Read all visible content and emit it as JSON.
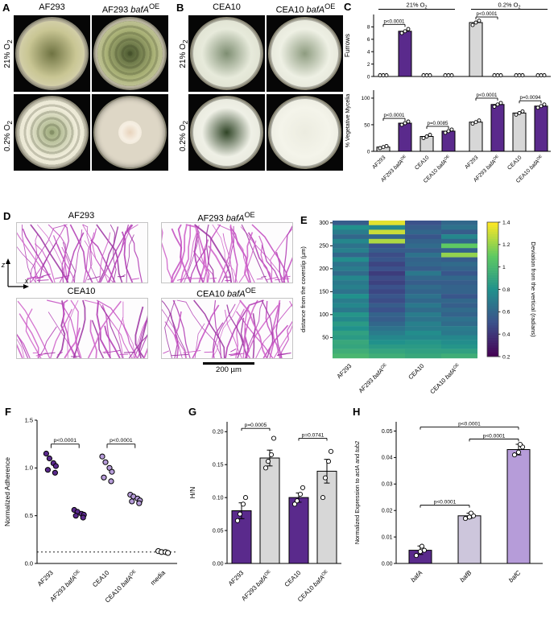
{
  "colors": {
    "purple": "#5a2a8c",
    "light_purple": "#b69cd9",
    "lavender": "#cdc6dc",
    "gray": "#d7d7d7",
    "white": "#ffffff",
    "magenta": "#bb3eb6"
  },
  "panelA": {
    "label": "A",
    "col_titles": [
      "AF293",
      "AF293 *bafA*^OE^"
    ],
    "row_labels": [
      "21% O~2~",
      "0.2% O~2~"
    ],
    "dishes": [
      [
        {
          "plate": "#cfc9ae",
          "center": "#6f7342",
          "mid": "#c9c694",
          "edge": "#e2ddc6",
          "scale": 0.93
        },
        {
          "plate": "#d6d0b8",
          "center": "#49572e",
          "mid": "#aab277",
          "edge": "#ddd9c0",
          "scale": 0.93,
          "rings": true
        }
      ],
      [
        {
          "plate": "#d9d4c0",
          "center": "#9aa878",
          "mid": "#efecd9",
          "edge": "#e6e2d0",
          "scale": 0.95,
          "rings": true
        },
        {
          "plate": "#ded7c6",
          "center": "#e8d3bc",
          "mid": "#f6efe3",
          "edge": "#ece4d2",
          "scale": 0.34
        }
      ]
    ]
  },
  "panelB": {
    "label": "B",
    "col_titles": [
      "CEA10",
      "CEA10 *bafA*^OE^"
    ],
    "row_labels": [
      "21% O~2~",
      "0.2% O~2~"
    ],
    "dishes": [
      [
        {
          "plate": "#c9c8b8",
          "center": "#7e8e72",
          "mid": "#e7eadb",
          "edge": "#d9dbc9",
          "scale": 0.95
        },
        {
          "plate": "#cfcec0",
          "center": "#8e9c80",
          "mid": "#eef0e4",
          "edge": "#dfe0d2",
          "scale": 0.95
        }
      ],
      [
        {
          "plate": "#c6c6b8",
          "center": "#2f4426",
          "mid": "#eff0e6",
          "edge": "#e2e3d6",
          "scale": 0.95
        },
        {
          "plate": "#c9c9bd",
          "center": "#ecece0",
          "mid": "#f4f4ea",
          "edge": "#e6e6da",
          "scale": 0.95
        }
      ]
    ]
  },
  "panelC": {
    "label": "C",
    "group_headers": [
      "21% O~2~",
      "0.2% O~2~"
    ]
  },
  "panelD": {
    "label": "D",
    "titles": [
      "AF293",
      "AF293 *bafA*^OE^",
      "CEA10",
      "CEA10 *bafA*^OE^"
    ],
    "z_label": "*z*",
    "x_label": "*x*",
    "scale_label": "200 µm"
  },
  "panelE": {
    "label": "E"
  },
  "panelF": {
    "label": "F"
  },
  "panelG": {
    "label": "G"
  },
  "panelH": {
    "label": "H"
  },
  "chart_data": [
    {
      "id": "furrows",
      "panel": "C",
      "type": "bar",
      "ylabel": "Furrows",
      "ylim": [
        0,
        10
      ],
      "yticks": [
        0,
        2,
        4,
        6,
        8
      ],
      "ytick_labels": [
        "0",
        "2",
        "4",
        "6",
        "8"
      ],
      "group_headers": [
        "21% O~2~",
        "0.2% O~2~"
      ],
      "categories": [
        "AF293",
        "AF293 *bafA*^OE^",
        "CEA10",
        "CEA10 *bafA*^OE^",
        "AF293",
        "AF293 *bafA*^OE^",
        "CEA10",
        "CEA10 *bafA*^OE^"
      ],
      "values": [
        0,
        7.3,
        0,
        0,
        8.7,
        0,
        0,
        0
      ],
      "bar_colors": [
        "gray",
        "purple",
        "gray",
        "purple",
        "gray",
        "purple",
        "gray",
        "purple"
      ],
      "points": [
        [
          0,
          0,
          0
        ],
        [
          7.0,
          7.3,
          7.65
        ],
        [
          0,
          0,
          0
        ],
        [
          0,
          0,
          0
        ],
        [
          8.3,
          8.7,
          9.0
        ],
        [
          0,
          0,
          0
        ],
        [
          0,
          0,
          0
        ],
        [
          0,
          0,
          0
        ]
      ],
      "annotations": [
        {
          "text": "p<0.0001",
          "from": 0,
          "to": 1,
          "y": 8.4
        },
        {
          "text": "p<0.0001",
          "from": 4,
          "to": 5,
          "y": 9.6
        }
      ]
    },
    {
      "id": "mycelia",
      "panel": "C",
      "type": "bar",
      "ylabel": "% Vegetative Mycelia",
      "ylim": [
        0,
        115
      ],
      "yticks": [
        0,
        50,
        100
      ],
      "ytick_labels": [
        "0",
        "50",
        "100"
      ],
      "categories": [
        "AF293",
        "AF293 *bafA*^OE^",
        "CEA10",
        "CEA10 *bafA*^OE^",
        "AF293",
        "AF293 *bafA*^OE^",
        "CEA10",
        "CEA10 *bafA*^OE^"
      ],
      "values": [
        8,
        53,
        28,
        38,
        55,
        88,
        72,
        85
      ],
      "bar_colors": [
        "gray",
        "purple",
        "gray",
        "purple",
        "gray",
        "purple",
        "gray",
        "purple"
      ],
      "points": [
        [
          6,
          8,
          10
        ],
        [
          50,
          53,
          56
        ],
        [
          25,
          28,
          31
        ],
        [
          35,
          38,
          41
        ],
        [
          52,
          55,
          58
        ],
        [
          84,
          88,
          91
        ],
        [
          69,
          72,
          75
        ],
        [
          82,
          85,
          88
        ]
      ],
      "annotations": [
        {
          "text": "p<0.0001",
          "from": 0,
          "to": 1,
          "y": 62
        },
        {
          "text": "p=0.0085",
          "from": 2,
          "to": 3,
          "y": 47
        },
        {
          "text": "p<0.0001",
          "from": 4,
          "to": 5,
          "y": 100
        },
        {
          "text": "p=0.0094",
          "from": 6,
          "to": 7,
          "y": 95
        }
      ]
    },
    {
      "id": "deviation",
      "panel": "E",
      "type": "heatmap",
      "ylabel": "distance from the coverslip (µm)",
      "categories": [
        "AF293",
        "AF293 *bafA*^OE^",
        "CEA10",
        "CEA10 *bafA*^OE^"
      ],
      "yticks": [
        300,
        250,
        200,
        150,
        100,
        50
      ],
      "row_top": 300,
      "row_step": 10,
      "colorbar": {
        "label": "Deviation from the vertical (radians)",
        "min": 0.2,
        "max": 1.4,
        "ticks": [
          0.2,
          0.4,
          0.6,
          0.8,
          1,
          1.2,
          1.4
        ],
        "tick_labels": [
          "0.2",
          "0.4",
          "0.6",
          "0.8",
          "1",
          "1.2",
          "1.4"
        ]
      },
      "values": [
        [
          0.55,
          1.35,
          0.5,
          0.6
        ],
        [
          0.8,
          0.75,
          0.55,
          0.65
        ],
        [
          0.7,
          1.3,
          0.6,
          0.55
        ],
        [
          0.6,
          0.6,
          0.52,
          0.75
        ],
        [
          0.75,
          1.25,
          0.58,
          0.6
        ],
        [
          0.65,
          0.5,
          0.62,
          1.1
        ],
        [
          0.72,
          0.55,
          0.55,
          0.58
        ],
        [
          0.6,
          0.48,
          0.65,
          1.2
        ],
        [
          0.78,
          0.52,
          0.58,
          0.55
        ],
        [
          0.65,
          0.45,
          0.6,
          0.62
        ],
        [
          0.7,
          0.5,
          0.55,
          0.58
        ],
        [
          0.62,
          0.42,
          0.68,
          0.52
        ],
        [
          0.75,
          0.48,
          0.6,
          0.6
        ],
        [
          0.68,
          0.44,
          0.55,
          0.55
        ],
        [
          0.72,
          0.5,
          0.62,
          0.58
        ],
        [
          0.65,
          0.46,
          0.58,
          0.58
        ],
        [
          0.8,
          0.52,
          0.65,
          0.52
        ],
        [
          0.7,
          0.48,
          0.6,
          0.6
        ],
        [
          0.75,
          0.55,
          0.68,
          0.56
        ],
        [
          0.68,
          0.5,
          0.62,
          0.62
        ],
        [
          0.82,
          0.58,
          0.7,
          0.58
        ],
        [
          0.75,
          0.55,
          0.65,
          0.65
        ],
        [
          0.85,
          0.6,
          0.72,
          0.62
        ],
        [
          0.8,
          0.65,
          0.7,
          0.7
        ],
        [
          0.88,
          0.7,
          0.78,
          0.68
        ],
        [
          0.85,
          0.75,
          0.75,
          0.75
        ],
        [
          0.92,
          0.8,
          0.82,
          0.78
        ],
        [
          0.9,
          0.85,
          0.85,
          0.82
        ],
        [
          0.95,
          0.9,
          0.88,
          0.88
        ],
        [
          1.0,
          0.95,
          0.92,
          0.95
        ]
      ]
    },
    {
      "id": "adherence",
      "panel": "F",
      "type": "scatter",
      "ylabel": "Normalized Adherence",
      "ylim": [
        0,
        1.5
      ],
      "yticks": [
        0,
        0.5,
        1,
        1.5
      ],
      "ytick_labels": [
        "0.0",
        "0.5",
        "1.0",
        "1.5"
      ],
      "categories": [
        "AF293",
        "AF293 *bafA*^OE^",
        "CEA10",
        "CEA10 *bafA*^OE^",
        "media"
      ],
      "series": [
        {
          "color": "purple",
          "values": [
            1.15,
            1.1,
            1.05,
            1.02,
            0.98,
            0.95
          ]
        },
        {
          "color": "purple",
          "values": [
            0.56,
            0.54,
            0.52,
            0.51,
            0.5,
            0.48
          ]
        },
        {
          "color": "light_purple",
          "values": [
            1.12,
            1.06,
            1.0,
            0.96,
            0.9,
            0.86
          ]
        },
        {
          "color": "light_purple",
          "values": [
            0.72,
            0.7,
            0.68,
            0.66,
            0.65,
            0.63
          ]
        },
        {
          "color": "white",
          "values": [
            0.13,
            0.12,
            0.12,
            0.11
          ]
        }
      ],
      "baseline": 0.12,
      "annotations": [
        {
          "text": "p<0.0001",
          "from": 0,
          "to": 1,
          "y": 1.25
        },
        {
          "text": "p<0.0001",
          "from": 2,
          "to": 3,
          "y": 1.25
        }
      ]
    },
    {
      "id": "hn",
      "panel": "G",
      "type": "bar",
      "ylabel": "H/N",
      "ylim": [
        0,
        0.215
      ],
      "yticks": [
        0,
        0.05,
        0.1,
        0.15,
        0.2
      ],
      "ytick_labels": [
        "0.00",
        "0.05",
        "0.10",
        "0.15",
        "0.20"
      ],
      "categories": [
        "AF293",
        "AF293 *bafA*^OE^",
        "CEA10",
        "CEA10 *bafA*^OE^"
      ],
      "values": [
        0.08,
        0.16,
        0.1,
        0.14
      ],
      "errors": [
        0.012,
        0.012,
        0.007,
        0.018
      ],
      "bar_colors": [
        "purple",
        "gray",
        "purple",
        "gray"
      ],
      "points": [
        [
          0.065,
          0.075,
          0.09,
          0.1
        ],
        [
          0.145,
          0.155,
          0.165,
          0.19
        ],
        [
          0.09,
          0.095,
          0.105,
          0.115
        ],
        [
          0.1,
          0.13,
          0.155,
          0.17
        ]
      ],
      "annotations": [
        {
          "text": "p=0.0005",
          "from": 0,
          "to": 1,
          "y": 0.205
        },
        {
          "text": "p=0.0741",
          "from": 2,
          "to": 3,
          "y": 0.19
        }
      ]
    },
    {
      "id": "expression",
      "panel": "H",
      "type": "bar",
      "ylabel": "Normalized Expression to *actA* and *tub2*",
      "ylim": [
        0,
        0.0535
      ],
      "yticks": [
        0,
        0.01,
        0.02,
        0.03,
        0.04,
        0.05
      ],
      "ytick_labels": [
        "0.00",
        "0.01",
        "0.02",
        "0.03",
        "0.04",
        "0.05"
      ],
      "categories": [
        "*bafA*",
        "*bafB*",
        "*bafC*"
      ],
      "values": [
        0.005,
        0.018,
        0.043
      ],
      "errors": [
        0.0016,
        0.001,
        0.002
      ],
      "bar_colors": [
        "purple",
        "lavender",
        "light_purple"
      ],
      "points": [
        [
          0.003,
          0.0045,
          0.005,
          0.0065
        ],
        [
          0.017,
          0.0175,
          0.018,
          0.019
        ],
        [
          0.041,
          0.042,
          0.044,
          0.045
        ]
      ],
      "annotations": [
        {
          "text": "p<0.0001",
          "from": 0,
          "to": 1,
          "y": 0.022
        },
        {
          "text": "p<0.0001",
          "from": 1,
          "to": 2,
          "y": 0.047
        },
        {
          "text": "p<0.0001",
          "from": 0,
          "to": 2,
          "y": 0.0515
        }
      ]
    }
  ]
}
